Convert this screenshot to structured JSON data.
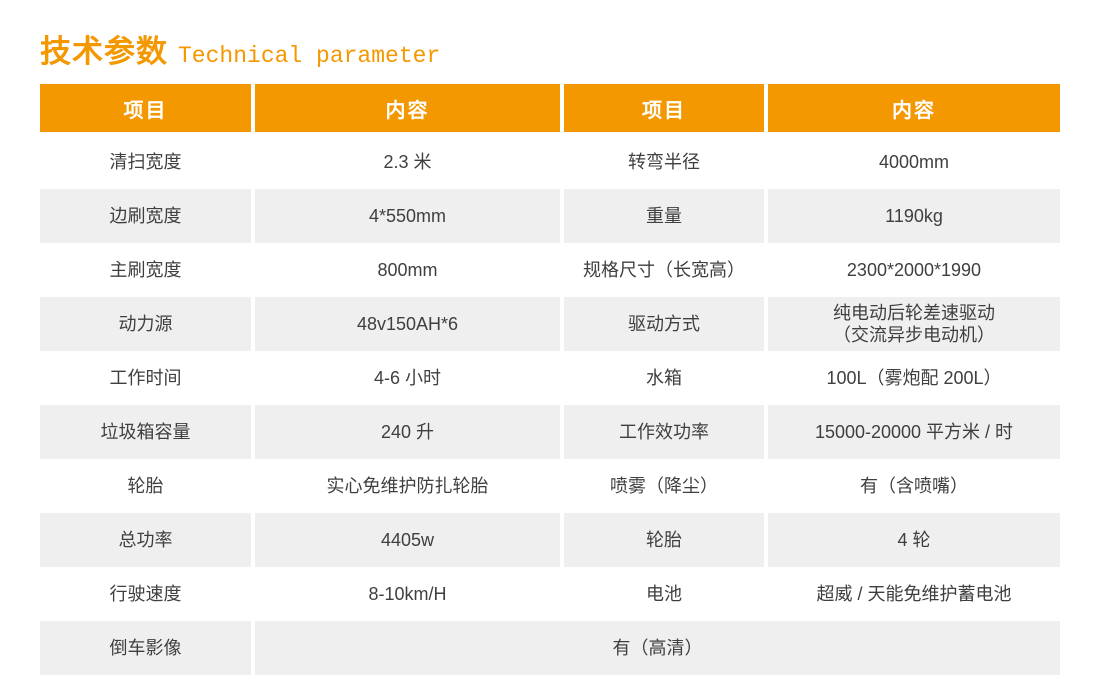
{
  "title": {
    "zh": "技术参数",
    "en": "Technical parameter"
  },
  "colors": {
    "accent_orange": "#F39800",
    "alt_row_gray": "#EFEFEF",
    "text_gray": "#3F3F3F"
  },
  "table": {
    "headers": [
      "项目",
      "内容",
      "项目",
      "内容"
    ],
    "rows": [
      {
        "left_item": "清扫宽度",
        "left_value": "2.3 米",
        "right_item": "转弯半径",
        "right_value": "4000mm"
      },
      {
        "left_item": "边刷宽度",
        "left_value": "4*550mm",
        "right_item": "重量",
        "right_value": "1190kg"
      },
      {
        "left_item": "主刷宽度",
        "left_value": "800mm",
        "right_item": "规格尺寸（长宽高）",
        "right_value": "2300*2000*1990"
      },
      {
        "left_item": "动力源",
        "left_value": "48v150AH*6",
        "right_item": "驱动方式",
        "right_value": "纯电动后轮差速驱动\n（交流异步电动机）"
      },
      {
        "left_item": "工作时间",
        "left_value": "4-6 小时",
        "right_item": "水箱",
        "right_value": "100L（雾炮配 200L）"
      },
      {
        "left_item": "垃圾箱容量",
        "left_value": "240 升",
        "right_item": "工作效功率",
        "right_value": "15000-20000 平方米 / 时"
      },
      {
        "left_item": "轮胎",
        "left_value": "实心免维护防扎轮胎",
        "right_item": "喷雾（降尘）",
        "right_value": "有（含喷嘴）"
      },
      {
        "left_item": "总功率",
        "left_value": "4405w",
        "right_item": "轮胎",
        "right_value": "4 轮"
      },
      {
        "left_item": "行驶速度",
        "left_value": "8-10km/H",
        "right_item": "电池",
        "right_value": "超威 / 天能免维护蓄电池"
      }
    ],
    "last_row": {
      "item": "倒车影像",
      "value": "有（高清）"
    }
  }
}
